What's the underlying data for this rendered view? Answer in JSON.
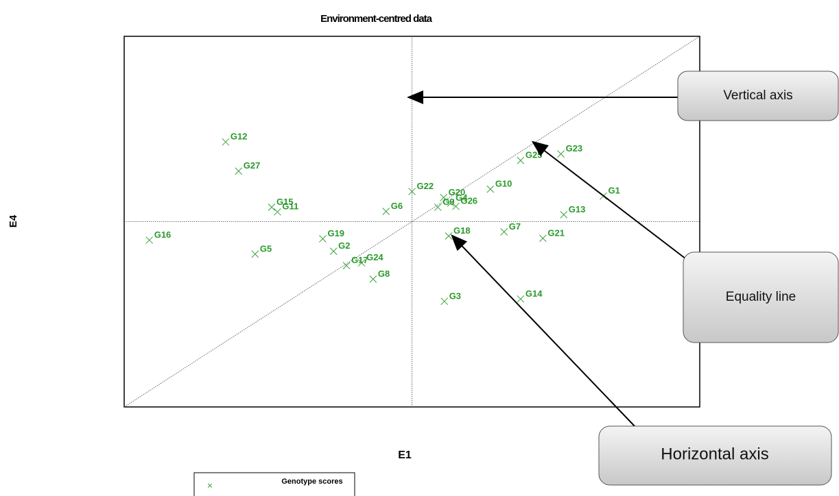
{
  "chart_data": {
    "type": "scatter",
    "title": "Environment-centred data",
    "xlabel": "E1",
    "ylabel": "E4",
    "xlim": [
      -4,
      4
    ],
    "ylim": [
      -4,
      4
    ],
    "series": [
      {
        "name": "Genotype scores",
        "color": "#3aa33a",
        "labels": [
          "G12",
          "G27",
          "G15",
          "G11",
          "G16",
          "G5",
          "G19",
          "G2",
          "G17",
          "G24",
          "G8",
          "G6",
          "G22",
          "G20",
          "G9",
          "G4",
          "G26",
          "G10",
          "G25",
          "G23",
          "G1",
          "G13",
          "G7",
          "G21",
          "G18",
          "G3",
          "G14"
        ],
        "x": [
          -2.59,
          -2.41,
          -1.95,
          -1.87,
          -3.65,
          -2.18,
          -1.24,
          -1.09,
          -0.91,
          -0.7,
          -0.54,
          -0.36,
          0.0,
          0.44,
          0.36,
          0.54,
          0.61,
          1.09,
          1.51,
          2.07,
          2.66,
          2.11,
          1.28,
          1.82,
          0.51,
          0.45,
          1.51
        ],
        "values": [
          1.72,
          1.09,
          0.31,
          0.21,
          -0.4,
          -0.7,
          -0.37,
          -0.64,
          -0.95,
          -0.89,
          -1.24,
          0.22,
          0.65,
          0.52,
          0.31,
          0.4,
          0.33,
          0.7,
          1.32,
          1.46,
          0.55,
          0.15,
          -0.22,
          -0.36,
          -0.31,
          -1.72,
          -1.67
        ]
      }
    ],
    "annotations": [
      "Vertical axis",
      "Equality line",
      "Horizontal axis"
    ]
  }
}
